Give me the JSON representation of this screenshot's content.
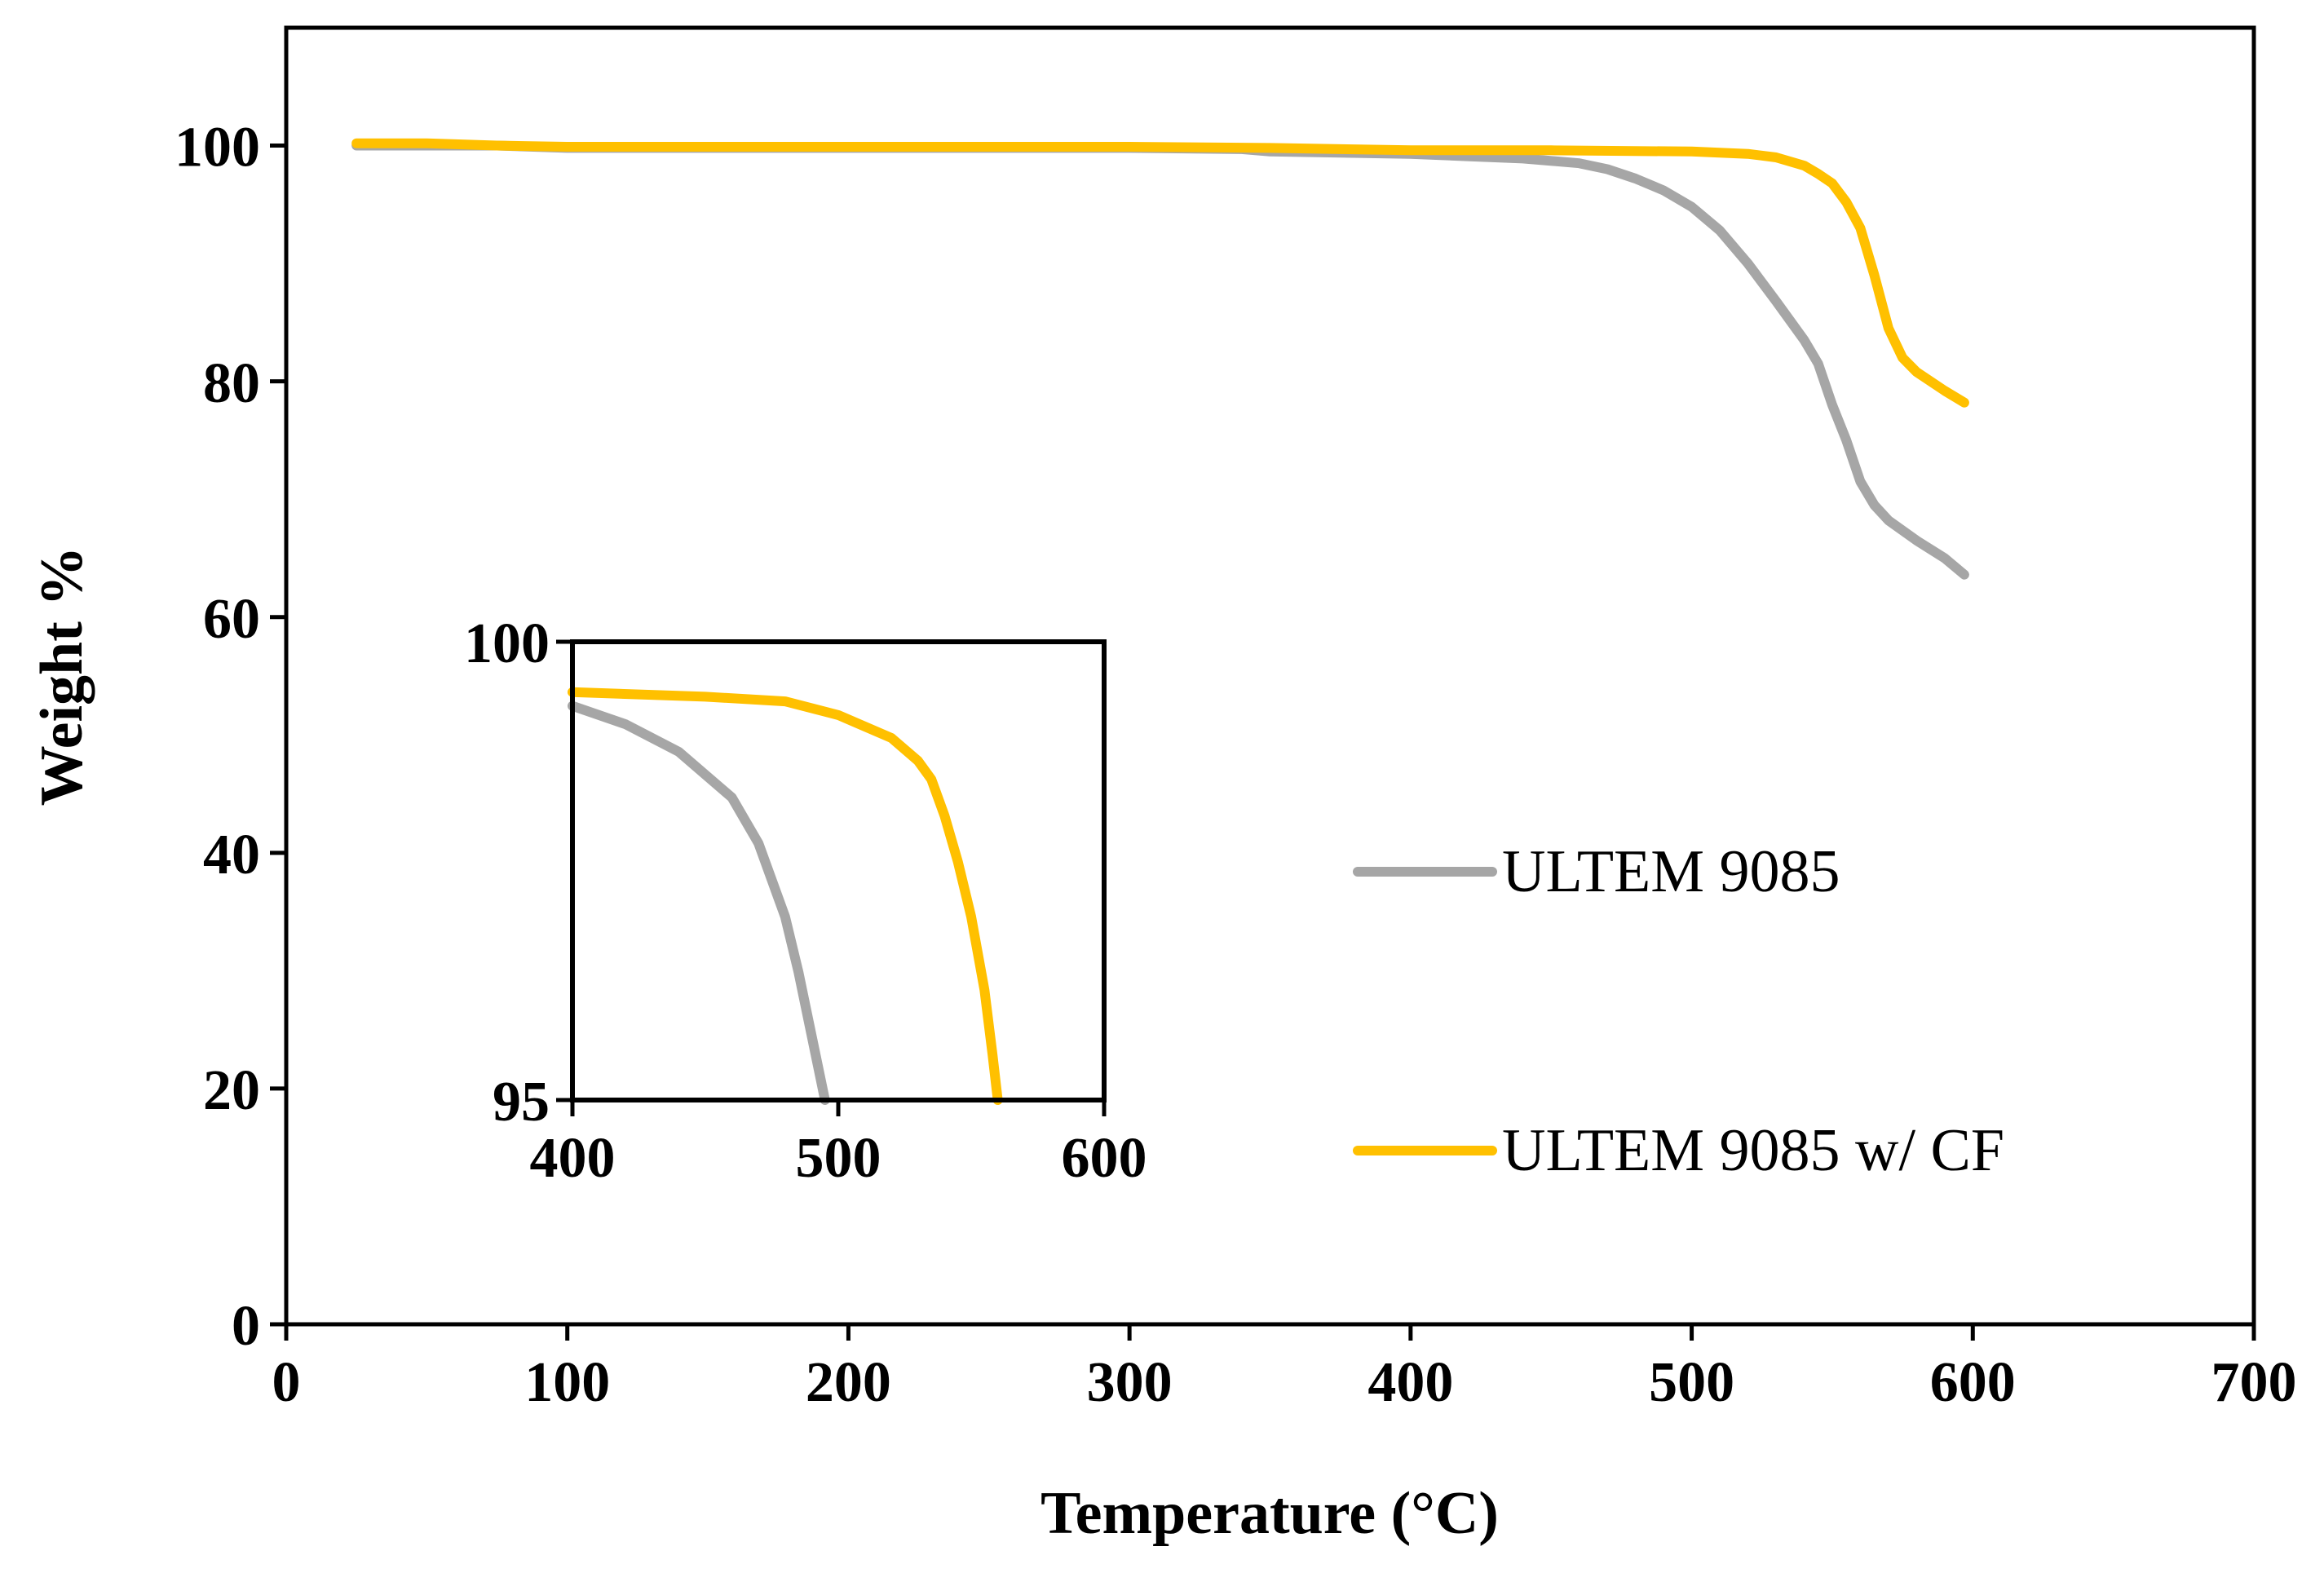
{
  "chart_data": [
    {
      "type": "line",
      "id": "main",
      "title": "",
      "xlabel": "Temperature (°C)",
      "ylabel": "Weight %",
      "xlim": [
        0,
        700
      ],
      "ylim": [
        0,
        110
      ],
      "xticks": [
        0,
        100,
        200,
        300,
        400,
        500,
        600,
        700
      ],
      "yticks": [
        0,
        20,
        40,
        60,
        80,
        100
      ],
      "grid": false,
      "legend": {
        "position": "center-right",
        "entries": [
          "ULTEM 9085",
          "ULTEM 9085 w/ CF"
        ]
      },
      "series": [
        {
          "name": "ULTEM 9085",
          "color": "#a6a6a6",
          "x": [
            25,
            50,
            75,
            100,
            150,
            200,
            250,
            300,
            340,
            350,
            400,
            420,
            440,
            460,
            470,
            480,
            490,
            500,
            510,
            520,
            530,
            540,
            545,
            550,
            555,
            560,
            565,
            570,
            580,
            590,
            597
          ],
          "y": [
            100,
            100,
            100,
            99.8,
            99.8,
            99.8,
            99.8,
            99.8,
            99.7,
            99.5,
            99.3,
            99.1,
            98.9,
            98.5,
            98,
            97.2,
            96.2,
            94.8,
            92.8,
            90,
            86.8,
            83.5,
            81.5,
            78,
            75,
            71.5,
            69.5,
            68.2,
            66.5,
            65,
            63.6
          ]
        },
        {
          "name": "ULTEM 9085 w/ CF",
          "color": "#ffc000",
          "x": [
            25,
            50,
            75,
            100,
            150,
            200,
            250,
            300,
            350,
            400,
            450,
            500,
            510,
            520,
            530,
            540,
            545,
            550,
            555,
            560,
            565,
            570,
            575,
            580,
            590,
            597
          ],
          "y": [
            100.2,
            100.2,
            100,
            99.9,
            99.9,
            99.9,
            99.9,
            99.9,
            99.8,
            99.6,
            99.6,
            99.5,
            99.4,
            99.3,
            99,
            98.3,
            97.6,
            96.8,
            95.2,
            93,
            89,
            84.5,
            82,
            80.8,
            79.2,
            78.2
          ]
        }
      ]
    },
    {
      "type": "line",
      "id": "inset",
      "title": "",
      "xlabel": "",
      "ylabel": "",
      "xlim": [
        400,
        600
      ],
      "ylim": [
        95,
        100
      ],
      "xticks": [
        400,
        500,
        600
      ],
      "yticks": [
        95,
        100
      ],
      "grid": false,
      "series": [
        {
          "name": "ULTEM 9085",
          "color": "#a6a6a6",
          "x": [
            400,
            420,
            440,
            460,
            470,
            480,
            485,
            490,
            495
          ],
          "y": [
            99.3,
            99.1,
            98.8,
            98.3,
            97.8,
            97,
            96.4,
            95.7,
            95
          ]
        },
        {
          "name": "ULTEM 9085 w/ CF",
          "color": "#ffc000",
          "x": [
            400,
            450,
            480,
            500,
            520,
            530,
            535,
            540,
            545,
            550,
            555,
            558,
            560
          ],
          "y": [
            99.45,
            99.4,
            99.35,
            99.2,
            98.95,
            98.7,
            98.5,
            98.1,
            97.6,
            97,
            96.2,
            95.5,
            95
          ]
        }
      ]
    }
  ]
}
